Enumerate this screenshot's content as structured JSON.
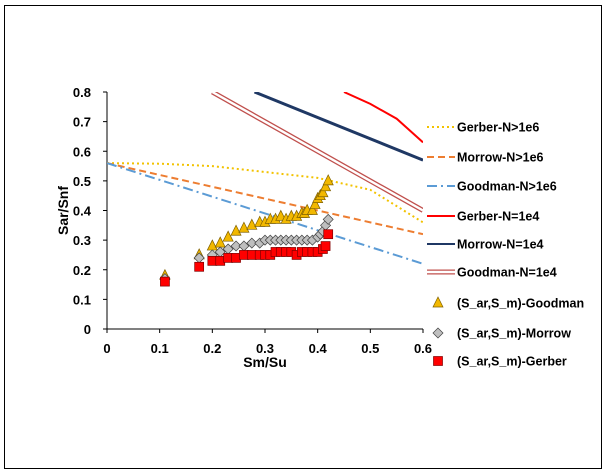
{
  "chart_data": {
    "type": "scatter",
    "xlabel": "Sm/Su",
    "ylabel": "Sar/Snf",
    "xlim": [
      0,
      0.6
    ],
    "ylim": [
      0,
      0.8
    ],
    "x_ticks": [
      "0",
      "0.1",
      "0.2",
      "0.3",
      "0.4",
      "0.5",
      "0.6"
    ],
    "y_ticks": [
      "0",
      "0.1",
      "0.2",
      "0.3",
      "0.4",
      "0.5",
      "0.6",
      "0.7",
      "0.8"
    ],
    "grid": false,
    "legend_position": "right",
    "lines": [
      {
        "name": "Gerber-N>1e6",
        "color": "#f2c200",
        "style": "dotted",
        "x": [
          0,
          0.1,
          0.2,
          0.3,
          0.4,
          0.5,
          0.6
        ],
        "y": [
          0.56,
          0.558,
          0.55,
          0.53,
          0.51,
          0.47,
          0.36
        ]
      },
      {
        "name": "Morrow-N>1e6",
        "color": "#ed7d31",
        "style": "dashed",
        "x": [
          0,
          0.6
        ],
        "y": [
          0.56,
          0.32
        ]
      },
      {
        "name": "Goodman-N>1e6",
        "color": "#5b9bd5",
        "style": "dashdot",
        "x": [
          0,
          0.6
        ],
        "y": [
          0.56,
          0.22
        ]
      },
      {
        "name": "Gerber-N=1e4",
        "color": "#ff0000",
        "style": "solid",
        "x": [
          0.45,
          0.5,
          0.55,
          0.6
        ],
        "y": [
          0.8,
          0.76,
          0.71,
          0.63
        ]
      },
      {
        "name": "Morrow-N=1e4",
        "color": "#1f3864",
        "style": "solid",
        "x": [
          0.28,
          0.6
        ],
        "y": [
          0.8,
          0.57
        ]
      },
      {
        "name": "Goodman-N=1e4",
        "color": "#c0504d",
        "style": "double",
        "x": [
          0.2,
          0.6
        ],
        "y": [
          0.8,
          0.4
        ]
      }
    ],
    "series": [
      {
        "name": "(S_ar,S_m)-Goodman",
        "marker": "triangle",
        "color": "#f2b800",
        "stroke": "#7f6000",
        "x": [
          0.11,
          0.175,
          0.2,
          0.215,
          0.23,
          0.245,
          0.26,
          0.275,
          0.29,
          0.3,
          0.31,
          0.32,
          0.33,
          0.34,
          0.35,
          0.36,
          0.37,
          0.375,
          0.38,
          0.39,
          0.395,
          0.4,
          0.405,
          0.41,
          0.415,
          0.42
        ],
        "y": [
          0.18,
          0.25,
          0.28,
          0.29,
          0.31,
          0.33,
          0.34,
          0.35,
          0.36,
          0.36,
          0.37,
          0.37,
          0.38,
          0.37,
          0.38,
          0.38,
          0.39,
          0.39,
          0.4,
          0.4,
          0.42,
          0.44,
          0.45,
          0.46,
          0.48,
          0.5
        ]
      },
      {
        "name": "(S_ar,S_m)-Morrow",
        "marker": "diamond",
        "color": "#bfbfbf",
        "stroke": "#404040",
        "x": [
          0.11,
          0.175,
          0.2,
          0.215,
          0.23,
          0.245,
          0.26,
          0.275,
          0.29,
          0.3,
          0.31,
          0.32,
          0.33,
          0.34,
          0.35,
          0.36,
          0.37,
          0.38,
          0.39,
          0.4,
          0.405,
          0.41,
          0.415,
          0.42
        ],
        "y": [
          0.17,
          0.24,
          0.25,
          0.26,
          0.27,
          0.28,
          0.28,
          0.29,
          0.29,
          0.3,
          0.3,
          0.3,
          0.3,
          0.3,
          0.3,
          0.3,
          0.3,
          0.3,
          0.3,
          0.31,
          0.32,
          0.33,
          0.35,
          0.37
        ]
      },
      {
        "name": "(S_ar,S_m)-Gerber",
        "marker": "square",
        "color": "#ff0000",
        "stroke": "#7f0000",
        "x": [
          0.11,
          0.175,
          0.2,
          0.215,
          0.23,
          0.245,
          0.26,
          0.275,
          0.29,
          0.3,
          0.31,
          0.32,
          0.33,
          0.34,
          0.35,
          0.36,
          0.37,
          0.38,
          0.39,
          0.4,
          0.41,
          0.415,
          0.42
        ],
        "y": [
          0.16,
          0.21,
          0.23,
          0.23,
          0.24,
          0.24,
          0.25,
          0.25,
          0.25,
          0.25,
          0.25,
          0.26,
          0.26,
          0.26,
          0.26,
          0.25,
          0.26,
          0.26,
          0.26,
          0.26,
          0.27,
          0.28,
          0.32
        ]
      }
    ]
  }
}
